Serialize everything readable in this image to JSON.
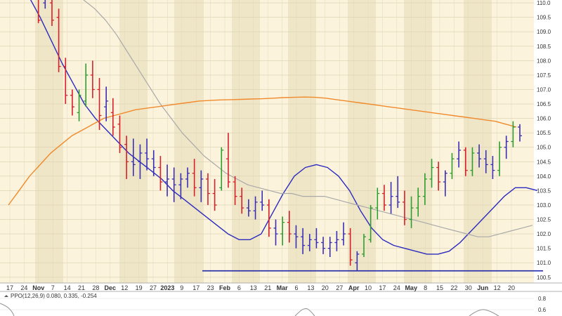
{
  "chart_data": {
    "type": "ohlc",
    "colors": {
      "background": "#fbf3dc",
      "band": "#efe6c7",
      "up": "#2e9e2e",
      "down": "#d6202a",
      "neutral": "#3a2fb5",
      "ma_short": "#2b2bbf",
      "ma_mid": "#a9a9a9",
      "ma_long": "#f08a2c",
      "support": "#1f24a8",
      "ppo": "#8f8f8f"
    },
    "ylim": [
      100.3,
      110.1
    ],
    "y_ticks": [
      "110.0",
      "109.5",
      "109.0",
      "108.5",
      "108.0",
      "107.5",
      "107.0",
      "106.5",
      "106.0",
      "105.5",
      "105.0",
      "104.5",
      "104.0",
      "103.5",
      "103.0",
      "102.5",
      "102.0",
      "101.5",
      "101.0",
      "100.5"
    ],
    "x_ticks": [
      {
        "label": "17",
        "bold": false
      },
      {
        "label": "24",
        "bold": false
      },
      {
        "label": "Nov",
        "bold": true
      },
      {
        "label": "7",
        "bold": false
      },
      {
        "label": "14",
        "bold": false
      },
      {
        "label": "21",
        "bold": false
      },
      {
        "label": "28",
        "bold": false
      },
      {
        "label": "Dec",
        "bold": true
      },
      {
        "label": "12",
        "bold": false
      },
      {
        "label": "19",
        "bold": false
      },
      {
        "label": "27",
        "bold": false
      },
      {
        "label": "2023",
        "bold": true
      },
      {
        "label": "9",
        "bold": false
      },
      {
        "label": "17",
        "bold": false
      },
      {
        "label": "23",
        "bold": false
      },
      {
        "label": "Feb",
        "bold": true
      },
      {
        "label": "6",
        "bold": false
      },
      {
        "label": "13",
        "bold": false
      },
      {
        "label": "21",
        "bold": false
      },
      {
        "label": "Mar",
        "bold": true
      },
      {
        "label": "6",
        "bold": false
      },
      {
        "label": "13",
        "bold": false
      },
      {
        "label": "20",
        "bold": false
      },
      {
        "label": "27",
        "bold": false
      },
      {
        "label": "Apr",
        "bold": true
      },
      {
        "label": "10",
        "bold": false
      },
      {
        "label": "17",
        "bold": false
      },
      {
        "label": "24",
        "bold": false
      },
      {
        "label": "May",
        "bold": true
      },
      {
        "label": "8",
        "bold": false
      },
      {
        "label": "15",
        "bold": false
      },
      {
        "label": "22",
        "bold": false
      },
      {
        "label": "30",
        "bold": false
      },
      {
        "label": "Jun",
        "bold": true
      },
      {
        "label": "12",
        "bold": false
      },
      {
        "label": "20",
        "bold": false
      }
    ],
    "support_level": 100.72,
    "moving_averages": [
      {
        "name": "ma_short",
        "values": [
          110.6,
          110.5,
          110.2,
          109.5,
          108.7,
          107.9,
          107.2,
          106.5,
          106.0,
          105.6,
          105.2,
          104.8,
          104.5,
          104.2,
          103.9,
          103.5,
          103.2,
          102.9,
          102.6,
          102.3,
          102.0,
          101.8,
          101.8,
          102.0,
          102.7,
          103.4,
          104.0,
          104.3,
          104.4,
          104.3,
          104.0,
          103.5,
          102.8,
          102.2,
          101.8,
          101.6,
          101.5,
          101.4,
          101.3,
          101.3,
          101.4,
          101.7,
          102.1,
          102.5,
          102.9,
          103.3,
          103.6,
          103.6,
          103.5
        ]
      },
      {
        "name": "ma_mid",
        "values": [
          110.9,
          110.9,
          110.8,
          110.8,
          110.7,
          110.6,
          110.4,
          110.1,
          109.8,
          109.4,
          108.9,
          108.3,
          107.7,
          107.1,
          106.5,
          106.0,
          105.5,
          105.1,
          104.7,
          104.4,
          104.1,
          103.9,
          103.7,
          103.6,
          103.5,
          103.4,
          103.4,
          103.3,
          103.3,
          103.3,
          103.2,
          103.1,
          103.0,
          102.9,
          102.8,
          102.7,
          102.6,
          102.5,
          102.4,
          102.3,
          102.2,
          102.1,
          102.0,
          101.9,
          101.9,
          102.0,
          102.1,
          102.2,
          102.3
        ]
      },
      {
        "name": "ma_long",
        "values": [
          103.0,
          103.5,
          104.0,
          104.4,
          104.8,
          105.1,
          105.4,
          105.6,
          105.8,
          106.0,
          106.1,
          106.2,
          106.3,
          106.35,
          106.4,
          106.45,
          106.5,
          106.55,
          106.6,
          106.62,
          106.64,
          106.65,
          106.66,
          106.67,
          106.68,
          106.7,
          106.72,
          106.73,
          106.74,
          106.73,
          106.7,
          106.65,
          106.6,
          106.55,
          106.5,
          106.45,
          106.4,
          106.35,
          106.3,
          106.25,
          106.2,
          106.15,
          106.1,
          106.05,
          106.0,
          105.95,
          105.9,
          105.8,
          105.7
        ]
      }
    ],
    "bars": [
      {
        "o": 110.8,
        "h": 111.0,
        "l": 110.5,
        "c": 110.6
      },
      {
        "o": 110.6,
        "h": 110.7,
        "l": 109.3,
        "c": 109.4
      },
      {
        "o": 110.0,
        "h": 110.3,
        "l": 109.8,
        "c": 110.2
      },
      {
        "o": 110.0,
        "h": 110.2,
        "l": 109.2,
        "c": 109.4
      },
      {
        "o": 109.5,
        "h": 109.8,
        "l": 107.6,
        "c": 107.8
      },
      {
        "o": 107.8,
        "h": 108.1,
        "l": 106.5,
        "c": 106.8
      },
      {
        "o": 106.8,
        "h": 107.0,
        "l": 106.1,
        "c": 106.4
      },
      {
        "o": 106.2,
        "h": 107.0,
        "l": 105.9,
        "c": 106.8
      },
      {
        "o": 106.6,
        "h": 107.9,
        "l": 106.4,
        "c": 107.5
      },
      {
        "o": 107.5,
        "h": 108.0,
        "l": 106.7,
        "c": 107.0
      },
      {
        "o": 107.0,
        "h": 107.4,
        "l": 105.6,
        "c": 106.1
      },
      {
        "o": 106.4,
        "h": 107.1,
        "l": 105.9,
        "c": 106.6
      },
      {
        "o": 106.2,
        "h": 106.7,
        "l": 105.4,
        "c": 105.7
      },
      {
        "o": 105.8,
        "h": 106.1,
        "l": 104.8,
        "c": 105.0
      },
      {
        "o": 105.1,
        "h": 105.4,
        "l": 103.9,
        "c": 104.5
      },
      {
        "o": 104.5,
        "h": 105.3,
        "l": 104.0,
        "c": 104.4
      },
      {
        "o": 104.5,
        "h": 105.1,
        "l": 103.9,
        "c": 104.8
      },
      {
        "o": 104.8,
        "h": 105.3,
        "l": 104.2,
        "c": 104.6
      },
      {
        "o": 104.6,
        "h": 104.9,
        "l": 104.0,
        "c": 104.3
      },
      {
        "o": 104.3,
        "h": 104.7,
        "l": 103.5,
        "c": 103.8
      },
      {
        "o": 103.8,
        "h": 104.4,
        "l": 103.3,
        "c": 103.9
      },
      {
        "o": 103.9,
        "h": 104.3,
        "l": 103.1,
        "c": 103.7
      },
      {
        "o": 103.7,
        "h": 104.1,
        "l": 103.2,
        "c": 103.9
      },
      {
        "o": 103.9,
        "h": 104.3,
        "l": 103.6,
        "c": 104.1
      },
      {
        "o": 104.1,
        "h": 104.6,
        "l": 103.3,
        "c": 103.6
      },
      {
        "o": 103.6,
        "h": 104.2,
        "l": 103.1,
        "c": 103.9
      },
      {
        "o": 103.9,
        "h": 104.1,
        "l": 103.0,
        "c": 103.4
      },
      {
        "o": 103.4,
        "h": 103.9,
        "l": 102.8,
        "c": 103.0
      },
      {
        "o": 103.6,
        "h": 105.0,
        "l": 103.5,
        "c": 104.9
      },
      {
        "o": 104.6,
        "h": 105.5,
        "l": 103.6,
        "c": 103.8
      },
      {
        "o": 103.8,
        "h": 104.0,
        "l": 103.0,
        "c": 103.3
      },
      {
        "o": 103.3,
        "h": 103.6,
        "l": 102.7,
        "c": 102.9
      },
      {
        "o": 102.9,
        "h": 103.2,
        "l": 102.6,
        "c": 102.8
      },
      {
        "o": 102.8,
        "h": 103.3,
        "l": 102.5,
        "c": 103.1
      },
      {
        "o": 103.1,
        "h": 103.5,
        "l": 102.8,
        "c": 103.0
      },
      {
        "o": 103.0,
        "h": 103.2,
        "l": 101.9,
        "c": 102.2
      },
      {
        "o": 102.2,
        "h": 102.5,
        "l": 101.6,
        "c": 102.0
      },
      {
        "o": 102.0,
        "h": 102.6,
        "l": 101.6,
        "c": 102.4
      },
      {
        "o": 102.4,
        "h": 102.8,
        "l": 101.7,
        "c": 102.0
      },
      {
        "o": 102.0,
        "h": 102.3,
        "l": 101.5,
        "c": 101.9
      },
      {
        "o": 101.9,
        "h": 102.2,
        "l": 101.3,
        "c": 101.6
      },
      {
        "o": 101.6,
        "h": 102.0,
        "l": 101.4,
        "c": 101.8
      },
      {
        "o": 101.8,
        "h": 102.2,
        "l": 101.5,
        "c": 101.7
      },
      {
        "o": 101.7,
        "h": 101.9,
        "l": 101.3,
        "c": 101.5
      },
      {
        "o": 101.5,
        "h": 101.9,
        "l": 101.2,
        "c": 101.7
      },
      {
        "o": 101.7,
        "h": 102.1,
        "l": 101.4,
        "c": 101.8
      },
      {
        "o": 101.8,
        "h": 102.4,
        "l": 101.6,
        "c": 102.0
      },
      {
        "o": 102.0,
        "h": 102.2,
        "l": 100.9,
        "c": 101.1
      },
      {
        "o": 101.0,
        "h": 101.4,
        "l": 100.7,
        "c": 101.3
      },
      {
        "o": 101.3,
        "h": 102.0,
        "l": 101.2,
        "c": 101.9
      },
      {
        "o": 101.8,
        "h": 103.0,
        "l": 101.7,
        "c": 102.9
      },
      {
        "o": 102.9,
        "h": 103.6,
        "l": 102.5,
        "c": 103.4
      },
      {
        "o": 103.4,
        "h": 103.7,
        "l": 102.8,
        "c": 103.0
      },
      {
        "o": 103.0,
        "h": 103.8,
        "l": 102.7,
        "c": 103.3
      },
      {
        "o": 103.3,
        "h": 104.0,
        "l": 102.9,
        "c": 103.1
      },
      {
        "o": 103.1,
        "h": 103.5,
        "l": 102.3,
        "c": 102.5
      },
      {
        "o": 102.5,
        "h": 103.3,
        "l": 102.2,
        "c": 102.9
      },
      {
        "o": 102.9,
        "h": 103.6,
        "l": 102.6,
        "c": 103.3
      },
      {
        "o": 103.3,
        "h": 104.1,
        "l": 103.0,
        "c": 103.9
      },
      {
        "o": 103.9,
        "h": 104.6,
        "l": 103.6,
        "c": 104.3
      },
      {
        "o": 104.3,
        "h": 104.5,
        "l": 103.5,
        "c": 103.8
      },
      {
        "o": 103.8,
        "h": 104.2,
        "l": 103.3,
        "c": 104.1
      },
      {
        "o": 104.1,
        "h": 104.8,
        "l": 103.9,
        "c": 104.6
      },
      {
        "o": 104.6,
        "h": 105.2,
        "l": 104.3,
        "c": 104.9
      },
      {
        "o": 104.9,
        "h": 105.0,
        "l": 104.0,
        "c": 104.2
      },
      {
        "o": 104.2,
        "h": 105.0,
        "l": 104.0,
        "c": 104.8
      },
      {
        "o": 104.8,
        "h": 105.1,
        "l": 104.3,
        "c": 104.6
      },
      {
        "o": 104.6,
        "h": 104.9,
        "l": 104.1,
        "c": 104.4
      },
      {
        "o": 104.4,
        "h": 104.7,
        "l": 103.9,
        "c": 104.2
      },
      {
        "o": 104.2,
        "h": 105.2,
        "l": 104.0,
        "c": 105.0
      },
      {
        "o": 105.0,
        "h": 105.4,
        "l": 104.6,
        "c": 105.2
      },
      {
        "o": 105.2,
        "h": 105.9,
        "l": 105.0,
        "c": 105.7
      },
      {
        "o": 105.7,
        "h": 105.8,
        "l": 105.2,
        "c": 105.4
      }
    ],
    "ppo": {
      "label": "PPO(12,26,9) 0.080, 0.335, -0.254",
      "ticks": [
        "0.8",
        "0.6"
      ]
    }
  }
}
